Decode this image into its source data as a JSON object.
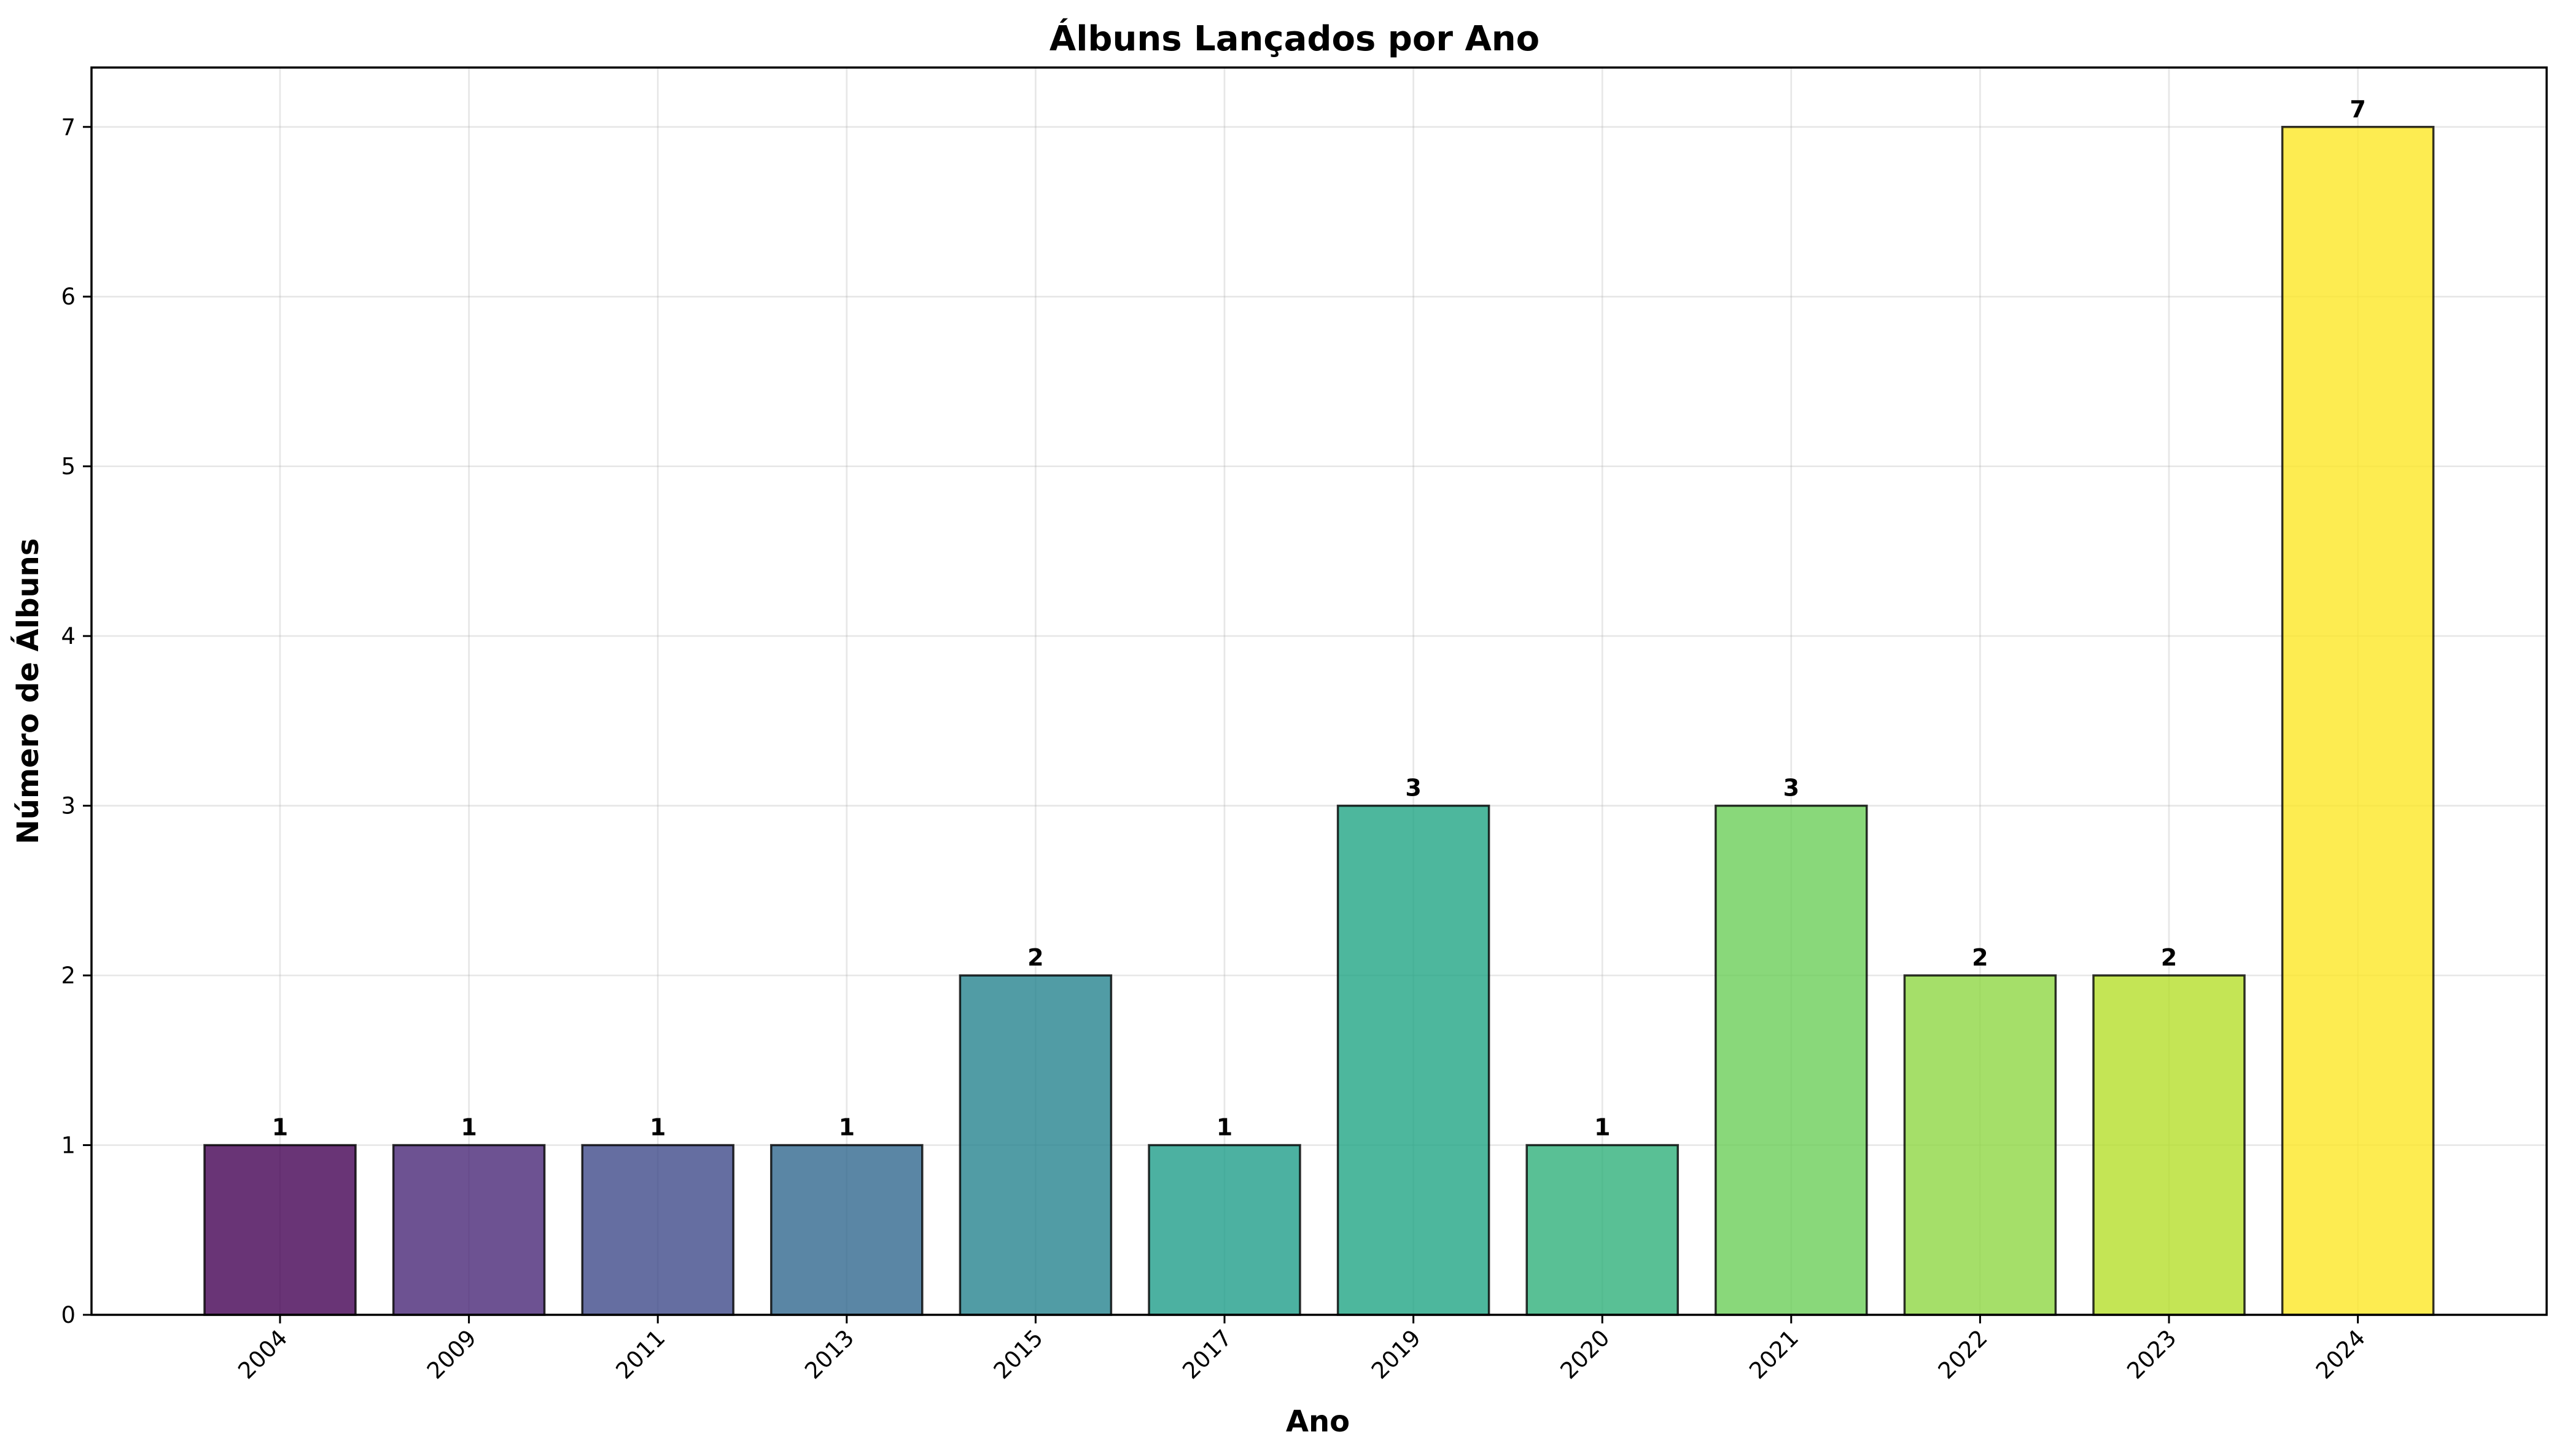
{
  "chart_data": {
    "type": "bar",
    "title": "Álbuns Lançados por Ano",
    "xlabel": "Ano",
    "ylabel": "Número de Álbuns",
    "categories": [
      "2004",
      "2009",
      "2011",
      "2013",
      "2015",
      "2017",
      "2019",
      "2020",
      "2021",
      "2022",
      "2023",
      "2024"
    ],
    "values": [
      1,
      1,
      1,
      1,
      2,
      1,
      3,
      1,
      3,
      2,
      2,
      7
    ],
    "colors": [
      "#440154",
      "#482777",
      "#3e4a89",
      "#31688e",
      "#26838f",
      "#1f9d8a",
      "#21a585",
      "#30b07a",
      "#6cce59",
      "#8fd744",
      "#b5de2b",
      "#fde725"
    ],
    "bar_opacity": 0.8,
    "ylim": [
      0,
      7.35
    ],
    "yticks": [
      0,
      1,
      2,
      3,
      4,
      5,
      6,
      7
    ],
    "grid": true,
    "legend": "none"
  }
}
